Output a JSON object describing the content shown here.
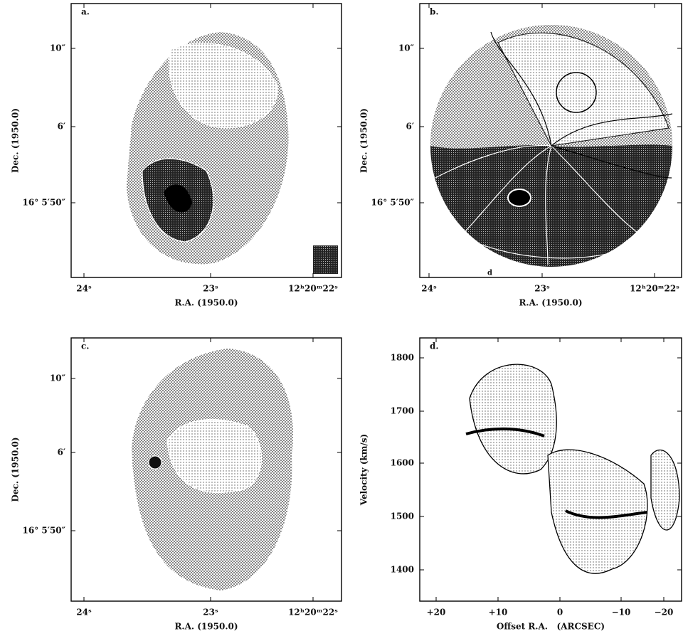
{
  "panels": [
    {
      "label": "a.",
      "x_ticks": [
        "24ˢ",
        "23ˢ",
        "12ʰ20ᵐ22ˢ"
      ],
      "x_label": "R.A. (1950.0)",
      "y_ticks": [
        "10″",
        "6′",
        "16° 5′50″"
      ],
      "y_label": "Dec. (1950.0)"
    },
    {
      "label": "b.",
      "note": "d",
      "x_ticks": [
        "24ˢ",
        "23ˢ",
        "12ʰ20ᵐ22ˢ"
      ],
      "x_label": "R.A. (1950.0)",
      "y_ticks": [
        "10″",
        "6′",
        "16° 5′50″"
      ],
      "y_label": "Dec. (1950.0)"
    },
    {
      "label": "c.",
      "x_ticks": [
        "24ˢ",
        "23ˢ",
        "12ʰ20ᵐ22ˢ"
      ],
      "x_label": "R.A. (1950.0)",
      "y_ticks": [
        "10″",
        "6′",
        "16° 5′50″"
      ],
      "y_label": "Dec. (1950.0)"
    },
    {
      "label": "d.",
      "x_ticks": [
        "+20",
        "+10",
        "0",
        "−10",
        "−20"
      ],
      "x_label": "Offset R.A.   (ARCSEC)",
      "y_ticks": [
        "1800",
        "1700",
        "1600",
        "1500",
        "1400"
      ],
      "y_label": "Velocity (km/s)"
    }
  ]
}
